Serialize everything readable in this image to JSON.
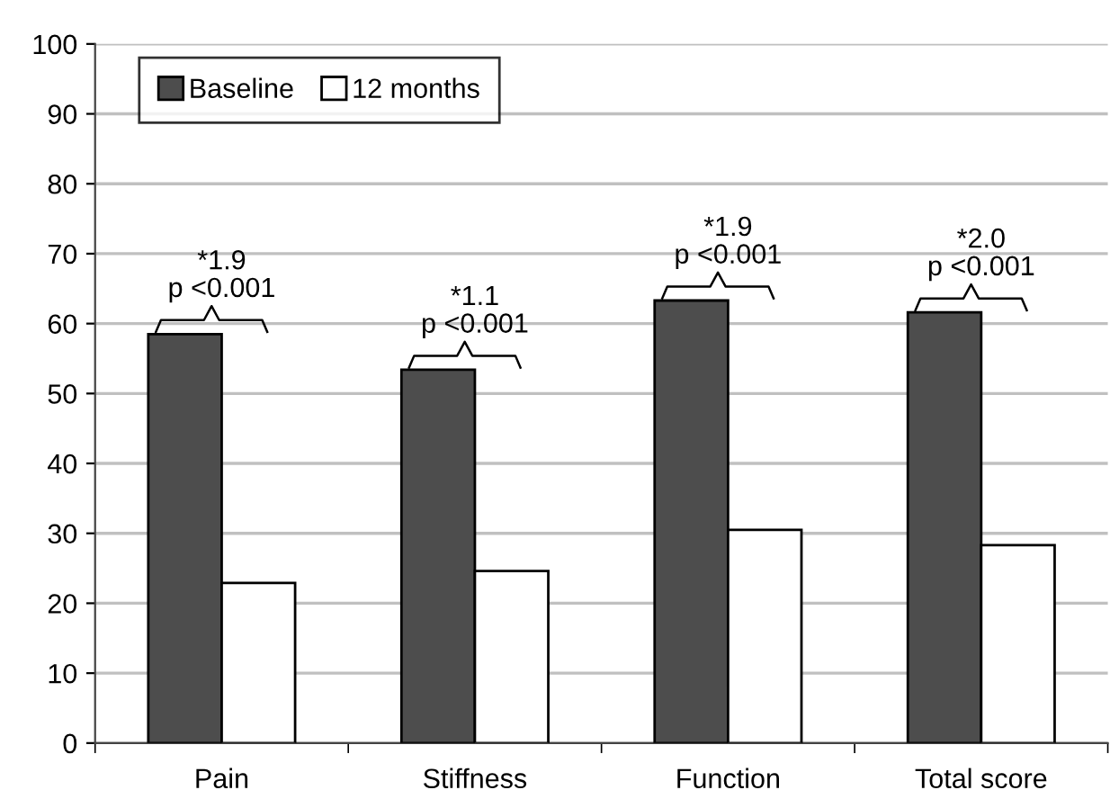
{
  "chart_data": {
    "type": "bar",
    "categories": [
      "Pain",
      "Stiffness",
      "Function",
      "Total score"
    ],
    "series": [
      {
        "name": "Baseline",
        "color": "#4d4d4d",
        "values": [
          58.5,
          53.4,
          63.3,
          61.6
        ]
      },
      {
        "name": "12 months",
        "color": "#ffffff",
        "values": [
          22.9,
          24.6,
          30.5,
          28.3
        ]
      }
    ],
    "ylim": [
      0,
      100
    ],
    "yticks": [
      0,
      10,
      20,
      30,
      40,
      50,
      60,
      70,
      80,
      90,
      100
    ],
    "grid": "y",
    "legend": "top left",
    "annotations": [
      "*1.9\np <0.001",
      "*1.1\np <0.001",
      "*1.9\np <0.001",
      "*2.0\np <0.001"
    ]
  }
}
